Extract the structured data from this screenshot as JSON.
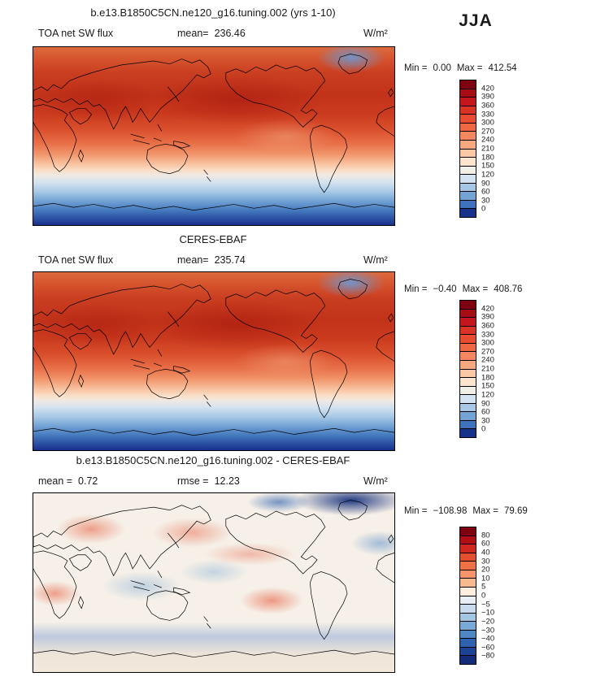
{
  "season_label": "JJA",
  "panels": {
    "model": {
      "title": "b.e13.B1850C5CN.ne120_g16.tuning.002 (yrs 1-10)",
      "variable": "TOA net SW flux",
      "mean_label": "mean=",
      "mean_value": "236.46",
      "units": "W/m²",
      "min_label": "Min =",
      "min_value": "0.00",
      "max_label": "Max =",
      "max_value": "412.54"
    },
    "obs": {
      "title": "CERES-EBAF",
      "variable": "TOA net SW flux",
      "mean_label": "mean=",
      "mean_value": "235.74",
      "units": "W/m²",
      "min_label": "Min =",
      "min_value": "−0.40",
      "max_label": "Max =",
      "max_value": "408.76"
    },
    "diff": {
      "title": "b.e13.B1850C5CN.ne120_g16.tuning.002 - CERES-EBAF",
      "mean_label": "mean =",
      "mean_value": "0.72",
      "rmse_label": "rmse =",
      "rmse_value": "12.23",
      "units": "W/m²",
      "min_label": "Min =",
      "min_value": "−108.98",
      "max_label": "Max =",
      "max_value": "79.69"
    }
  },
  "colorbars": {
    "flux": {
      "levels": [
        "420",
        "390",
        "360",
        "330",
        "300",
        "270",
        "240",
        "210",
        "180",
        "150",
        "120",
        "90",
        "60",
        "30",
        "0"
      ],
      "colors": [
        "#7f0010",
        "#a60e13",
        "#c4161c",
        "#d93325",
        "#e84c31",
        "#f06744",
        "#f4875f",
        "#f8a87f",
        "#fbc8a5",
        "#fde5cd",
        "#f2eee8",
        "#d4e3f2",
        "#a6c8e6",
        "#74a3d5",
        "#3f72bc",
        "#16328b"
      ]
    },
    "diff": {
      "levels": [
        "80",
        "60",
        "40",
        "30",
        "20",
        "10",
        "5",
        "0",
        "−5",
        "−10",
        "−20",
        "−30",
        "−40",
        "−60",
        "−80"
      ],
      "colors": [
        "#7f0010",
        "#b01015",
        "#d0281f",
        "#e4502f",
        "#ef7146",
        "#f59468",
        "#f9b98f",
        "#fdeedd",
        "#e8eef6",
        "#c9dcef",
        "#a3c6e4",
        "#79a9d6",
        "#4f86c4",
        "#2f62ae",
        "#1d4494",
        "#122c7a"
      ]
    }
  },
  "chart_data": [
    {
      "type": "heatmap",
      "title": "b.e13.B1850C5CN.ne120_g16.tuning.002 (yrs 1-10)",
      "variable": "TOA net SW flux",
      "season": "JJA",
      "units": "W/m^2",
      "projection": "global latitude-longitude map (0-360E)",
      "mean": 236.46,
      "min": 0.0,
      "max": 412.54,
      "contour_levels": [
        0,
        30,
        60,
        90,
        120,
        150,
        180,
        210,
        240,
        270,
        300,
        330,
        360,
        390,
        420
      ],
      "palette": "dark blue (low, southern high latitudes) to dark red (high, northern subtropics)",
      "legend_position": "right"
    },
    {
      "type": "heatmap",
      "title": "CERES-EBAF",
      "variable": "TOA net SW flux",
      "season": "JJA",
      "units": "W/m^2",
      "projection": "global latitude-longitude map (0-360E)",
      "mean": 235.74,
      "min": -0.4,
      "max": 408.76,
      "contour_levels": [
        0,
        30,
        60,
        90,
        120,
        150,
        180,
        210,
        240,
        270,
        300,
        330,
        360,
        390,
        420
      ],
      "palette": "dark blue (low, southern high latitudes) to dark red (high, northern subtropics)",
      "legend_position": "right"
    },
    {
      "type": "heatmap",
      "title": "b.e13.B1850C5CN.ne120_g16.tuning.002 - CERES-EBAF",
      "variable": "TOA net SW flux difference (model minus obs)",
      "season": "JJA",
      "units": "W/m^2",
      "projection": "global latitude-longitude map (0-360E)",
      "mean": 0.72,
      "rmse": 12.23,
      "min": -108.98,
      "max": 79.69,
      "contour_levels": [
        -80,
        -60,
        -40,
        -30,
        -20,
        -10,
        -5,
        0,
        5,
        10,
        20,
        30,
        40,
        60,
        80
      ],
      "palette": "blue (negative) through white (near zero) to red (positive); strong negative patch in Arctic",
      "legend_position": "right"
    }
  ]
}
